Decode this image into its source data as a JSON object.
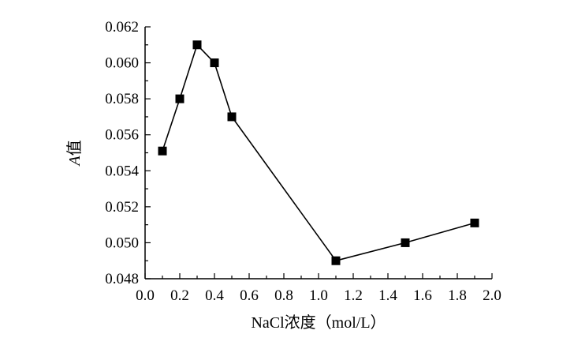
{
  "chart_data": {
    "type": "line",
    "xlabel": "NaCl浓度（mol/L）",
    "ylabel_italic": "A",
    "ylabel_rest": "值",
    "xlim": [
      0.0,
      2.0
    ],
    "ylim": [
      0.048,
      0.062
    ],
    "x_ticks": [
      "0.0",
      "0.2",
      "0.4",
      "0.6",
      "0.8",
      "1.0",
      "1.2",
      "1.4",
      "1.6",
      "1.8",
      "2.0"
    ],
    "y_ticks": [
      "0.048",
      "0.050",
      "0.052",
      "0.054",
      "0.056",
      "0.058",
      "0.060",
      "0.062"
    ],
    "grid": false,
    "series": [
      {
        "marker": "square",
        "color": "#000000",
        "x": [
          0.1,
          0.2,
          0.3,
          0.4,
          0.5,
          1.1,
          1.5,
          1.9
        ],
        "y": [
          0.0551,
          0.058,
          0.061,
          0.06,
          0.057,
          0.049,
          0.05,
          0.0511
        ]
      }
    ]
  }
}
